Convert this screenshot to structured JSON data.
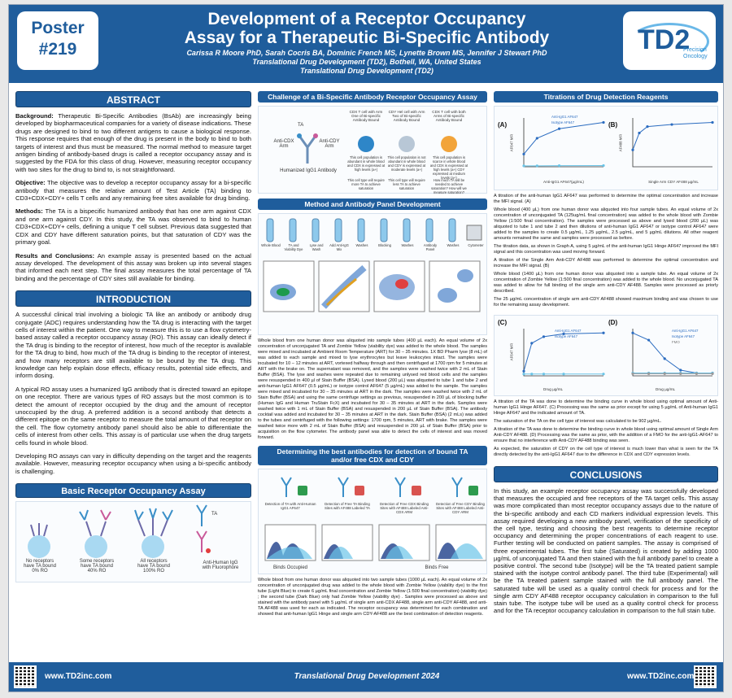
{
  "header": {
    "poster_label": "Poster",
    "poster_number": "#219",
    "title_line1": "Development of a Receptor Occupancy",
    "title_line2": "Assay for a Therapeutic Bi-Specific Antibody",
    "authors": "Carissa R Moore PhD, Sarah Cocris BA, Dominic French MS, Lynette Brown MS, Jennifer J Stewart PhD",
    "affiliation1": "Translational Drug Development (TD2), Bothell, WA, United States",
    "affiliation2": "Translational Drug Development (TD2)",
    "logo_text": "TD2",
    "logo_sub1": "Precision",
    "logo_sub2": "Oncology"
  },
  "abstract": {
    "heading": "ABSTRACT",
    "background_label": "Background:",
    "background": "Therapeutic Bi-Specific Antibodies (BsAb) are increasingly being developed by biopharmaceutical companies for a variety of disease indications. These drugs are designed to bind to two different antigens to cause a biological response. This response requires that enough of the drug is present in the body to bind to both targets of interest and thus must be measured. The normal method to measure target antigen binding of antibody-based drugs is called a receptor occupancy assay and is suggested by the FDA for this class of drug. However, measuring receptor occupancy with two sites for the drug to bind to, is not straightforward.",
    "objective_label": "Objective:",
    "objective": "The objective was to develop a receptor occupancy assay for a bi-specific antibody that measures the relative amount of Test Article (TA) binding to CD3+CDX+CDY+ cells T cells and any remaining free sites available for drug binding.",
    "methods_label": "Methods:",
    "methods": "The TA is a bispecific humanized antibody that has one arm against CDX and one arm against CDY. In this study, the TA was observed to bind to human CD3+CDX+CDY+ cells, defining a unique T cell subset. Previous data suggested that CDX and CDY have different saturation points, but that saturation of CDY was the primary goal.",
    "results_label": "Results and Conclusions:",
    "results": "An example assay is presented based on the actual assay developed. The development of this assay was broken up into several stages that informed each next step. The final assay measures the total percentage of TA binding and the percentage of CDY sites still available for binding."
  },
  "introduction": {
    "heading": "INTRODUCTION",
    "p1": "A successful clinical trial involving a biologic TA like an antibody or antibody drug conjugate (ADC) requires understanding how the TA drug is interacting with the target cells of interest within the patient. One way to measure this is to use a flow cytometry-based assay called a receptor occupancy assay (RO). This assay can ideally detect if the TA drug is binding to the receptor of interest, how much of the receptor is available for the TA drug to bind, how much of the TA drug is binding to the receptor of interest, and how many receptors are still available to be bound by the TA drug. This knowledge can help explain dose effects, efficacy results, potential side effects, and inform dosing.",
    "p2": "A typical RO assay uses a humanized IgG antibody that is directed toward an epitope on one receptor. There are various types of RO assays but the most common is to detect the amount of receptor occupied by the drug and the amount of receptor unoccupied by the drug. A preferred addition is a second antibody that detects a different epitope on the same receptor to measure the total amount of that receptor on the cell. The flow cytometry antibody panel should also be able to differentiate the cells of interest from other cells. This assay is of particular use when the drug targets cells found in whole blood.",
    "p3": "Developing RO assays can vary in difficulty depending on the target and the reagents available. However, measuring receptor occupancy when using a bi-specific antibody is challenging."
  },
  "basic_ro": {
    "heading": "Basic Receptor Occupancy Assay",
    "label1a": "No receptors",
    "label1b": "have TA bound",
    "label1c": "0% RO",
    "label2a": "Some receptors",
    "label2b": "have TA bound",
    "label2c": "40% RO",
    "label3a": "All receptors",
    "label3b": "have TA bound",
    "label3c": "100% RO",
    "ta_label": "TA",
    "anti_label1": "Anti-Human IgG",
    "anti_label2": "with Fluorophore"
  },
  "challenge": {
    "heading": "Challenge of a Bi-Specific Antibody Receptor Occupancy Assay",
    "ta_label": "TA",
    "arm_x": "Anti-CDX Arm",
    "arm_y": "Anti-CDY Arm",
    "humanized": "Humanized IgG1 Antibody",
    "col1_title": "CDX T cell with Arm One of Bi-specific Antibody Bound",
    "col2_title": "CDY Hel cell with Arm Two of Bi-specific Antibody Bound",
    "col3_title": "CDX T cell with both Arms of Bi-specific Antibody Bound",
    "col1_note": "This cell population is abundant in whole blood and CDX is expressed at high levels (a+)",
    "col2_note": "This cell population is not abundant in whole blood and CDY is expressed at moderate levels (a+)",
    "col3_note": "This cell population is scarce in whole blood and CDX is expressed at high levels (a+) CDY expressed at medium levels (a+)",
    "col1_note2": "This cell type will require more TA to achieve saturation",
    "col2_note2": "This cell type will require less TA to achieve saturation",
    "col3_note2": "How much TA will be needed to achieve saturation? How will we measure saturation?"
  },
  "method": {
    "heading": "Method and Antibody Panel Development",
    "steps": [
      "Whole Blood",
      "TA and Viability Dye",
      "Lyse and Wash",
      "Add Anti-IgG Mix",
      "Washes",
      "Blocking",
      "Washes",
      "Antibody Panel",
      "Washes",
      "Cytometer"
    ],
    "text": "Whole blood from one human donor was aliquoted into sample tubes (400 µL each). An equal volume of 2x concentration of unconjugated TA and Zombie Yellow (viability dye) was added to the whole blood. The samples were mixed and incubated at Ambient Room Temperature (ART) for 30 – 35 minutes. 1X BD Pharm lyse (8 mL) of was added to each sample and mixed to lyse erythrocytes but leave leukocytes intact. The samples were incubated for 10 – 12 minutes at ART, vortexed halfway through and then centrifuged at 1700 rpm for 5 minutes at ART with the brake on. The supernatant was removed, and the samples were washed twice with 2 mL of Stain Buffer (BSA). The lyse and washes were repeated due to remaining unlysed red blood cells and the samples were resuspended in 400 µl of Stain Buffer (BSA). Lysed blood (200 µL) was aliquoted to tube 1 and tube 2 and anti-human IgG1 AF647 (0.5 µg/mL) or isotype control AF647 (5 µg/mL) was added to the sample. The samples were mixed and incubated for 30 – 35 minutes at ART in the dark. The samples were washed twice with 2 mL of Stain Buffer (BSA) and using the same centrifuge settings as previous, resuspended in 200 µL of blocking buffer (Human IgG and Human TruStain FcX) and incubated for 30 – 35 minutes at ART in the dark. Samples were washed twice with 1 mL of Stain Buffer (BSA) and resuspended in 200 µL of Stain Buffer (BSA). The antibody cocktail was added and incubated for 30 – 35 minutes at ART in the dark. Stain Buffer (BSA) (2 mLs) was added to the tubes and centrifuged with the following settings: 1700 rpm, 5 minutes, ART with brake. The samples were washed twice more with 2 mL of Stain Buffer (BSA) and resuspended in 200 µL of Stain Buffer (BSA) prior to acquisition on the flow cytometer. The antibody panel was able to detect the cells of interest and was moved forward."
  },
  "best_ab": {
    "heading_line1": "Determining the best antibodies for detection of bound TA",
    "heading_line2": "and/or free CDX and CDY",
    "lab1": "Detection of TA with Anti-Human IgG1 AF647",
    "lab2": "Detection of Free TA Binding Sites with AF488 Labeled TA",
    "lab3": "Detection of Free CDX Binding Sites with AF488 Labeled Anti-CDX ARM",
    "lab4": "Detection of Free CDY Binding Sites with AF488 Labeled Anti-CDY ARM",
    "occupied": "Binds Occupied",
    "free": "Binds Free",
    "text": "Whole blood from one human donor was aliquoted into two sample tubes (1000 µL each). An equal volume of 2x concentration of unconjugated drug was added to the whole blood with Zombie Yellow (viability dye) to the first tube (Light Blue) to create 6 µg/mL final concentration and Zombie Yellow (1:500 final concentration) (viability dye) ; the second tube (Dark Blue) only had Zombie Yellow (viability dye) . Samples were processed as above and stained with the antibody panel with 5 µg/mL of single arm anti-CDX AF488, single arm anti-CDY AF488, and anti-TA AF488 was used for each as indicated. The receptor occupancy was determined for each combination and showed that anti-human IgG1 Hinge and single arm CDY-AF488 are the best combination of detection reagents."
  },
  "titrations": {
    "heading": "Titrations of Drug Detection Reagents",
    "panel_a": "(A)",
    "panel_b": "(B)",
    "panel_c": "(C)",
    "panel_d": "(D)",
    "a_legend1": "Anti-IgG1 AF647",
    "a_legend2": "Isotype AF647",
    "a_ylabel": "AF647 MFI",
    "a_xlabel": "Anti-IgG1 AF647(µg/mL)",
    "b_ylabel": "AF488 MFI",
    "b_xlabel": "Single Arm CDY AF488 µg/mL",
    "c_legend1": "Anti-IgG1 AF647",
    "c_legend2": "Isotype AF647",
    "c_ylabel": "AF647 MFI",
    "c_xlabel": "Drug µg/mL",
    "d_legend1": "Anti-IgG1 AF647",
    "d_legend2": "Isotype AF647",
    "d_legend3": "FMO",
    "d_xlabel": "Drug µg/mL",
    "t1": "A titration of the anti-human IgG1 AF647 was performed to determine the optimal concentration and increase the MFI signal. (A)",
    "t2": "Whole blood (400 µL) from one human donor was aliquoted into four sample tubes. An equal volume of 2x concentration of unconjugated TA (125ug/mL final concentration) was added to the whole blood with Zombie Yellow (1:500 final concentration). The samples were processed as above and lysed blood (200 µL) was aliquoted to tube 1 and tube 2 and then dilutions of anti-human IgG1 AF647 or isotype control AF647 were added to the samples to create 0.5 µg/mL, 1.25 µg/mL, 2.5 µg/mL, and 5 µg/mL dilutions. All other reagent amounts remained the same and samples were processed as before.",
    "t3": "The titration data, as shown in Graph A, using 5 µg/mL of the anti-human IgG1 Hinge AF647 improved the MFI signal and this concentration was used moving forward.",
    "t4": "A titration of the Single Arm Anti-CDY AF488 was performed to determine the optimal concentration and increase the MFI signal. (B)",
    "t5": "Whole blood (1400 µL) from one human donor was aliquoted into a sample tube. An equal volume of 2x concentration of Zombie Yellow (1:500 final concentration) was added to the whole blood. No unconjugated TA was added to allow for full binding of the single arm anti-CDY AF488. Samples were processed as priorly described.",
    "t6": "The 25 µg/mL concentration of single arm anti-CDY AF488 showed maximum binding and was chosen to use for the remaining assay development.",
    "t7": "A titration of the TA was done to determine the binding curve in whole blood using optimal amount of Anti-human IgG1 Hinge AF647. (C) Processing was the same as prior except for using 5 µg/mL of Anti-human IgG1 Hinge AF647 and the indicated amount of TA.",
    "t8": "The saturation of the TA on the cell type of interest was calculated to be 902 µg/mL.",
    "t9": "A titration of the TA was done to determine the binding curve in whole blood using optimal amount of Single Arm Anti-CDY AF488. (D) Processing was the same as prior, with the addition of a FMO for the anti-IgG1-AF647 to ensure that no interference with Anti-CDY AF488 binding was seen.",
    "t10": "As expected, the saturation of CDY on the cell type of interest is much lower than what is seen for the TA directly detected by the anti-IgG1 AF647 due to the difference in CDX and CDY expression levels."
  },
  "conclusions": {
    "heading": "CONCLUSIONS",
    "text": "In this study, an example receptor occupancy assay was successfully developed that measures the occupied and free receptors of the TA target cells. This assay was more complicated than most receptor occupancy assays due to the nature of the bi-specific antibody and each CD markers individual expression levels. This assay required developing a new antibody panel, verification of the specificity of the cell type, testing and choosing the best reagents to determine receptor occupancy and determining the proper concentrations of each reagent to use. Further testing will be conducted on patient samples. The assay is comprised of three experimental tubes. The first tube (Saturated) is created by adding 1000 µg/mL of unconjugated TA and then stained with the full antibody panel to create a positive control. The second tube (Isotype) will be the TA treated patient sample stained with the isotype control antibody panel. The third tube (Experimental) will be the TA treated patient sample stained with the full antibody panel. The saturated tube will be used as a quality control check for process and for the single arm CDY AF488 receptor occupancy calculation in comparison to the full stain tube. The isotype tube will be used as a quality control check for process and for the TA receptor occupancy calculation in comparison to the full stain tube."
  },
  "footer": {
    "url_left": "www.TD2inc.com",
    "center": "Translational Drug Development 2024",
    "url_right": "www.TD2inc.com"
  },
  "chart_data": [
    {
      "type": "line",
      "title": "",
      "xlabel": "Anti-IgG1 AF647(µg/mL)",
      "ylabel": "AF647 MFI",
      "series": [
        {
          "name": "Anti-IgG1 AF647",
          "x": [
            0.5,
            1.25,
            2.5,
            5
          ],
          "values": [
            2000,
            4500,
            6000,
            7000
          ]
        },
        {
          "name": "Isotype AF647",
          "x": [
            0.5,
            1.25,
            2.5,
            5
          ],
          "values": [
            150,
            150,
            180,
            200
          ]
        }
      ]
    },
    {
      "type": "line",
      "title": "",
      "xlabel": "Single Arm CDY AF488 µg/mL",
      "ylabel": "AF488 MFI",
      "series": [
        {
          "name": "",
          "x": [
            1,
            5,
            10,
            25,
            50
          ],
          "values": [
            400,
            800,
            950,
            1000,
            1050
          ]
        }
      ]
    },
    {
      "type": "line",
      "title": "",
      "xlabel": "Drug µg/mL",
      "ylabel": "AF647 MFI",
      "series": [
        {
          "name": "Anti-IgG1 AF647",
          "x": [
            0,
            100,
            250,
            500,
            1000
          ],
          "values": [
            500,
            3500,
            4200,
            4500,
            4600
          ]
        },
        {
          "name": "Isotype AF647",
          "x": [
            0,
            100,
            250,
            500,
            1000
          ],
          "values": [
            200,
            200,
            200,
            200,
            200
          ]
        }
      ]
    },
    {
      "type": "line",
      "title": "",
      "xlabel": "Drug µg/mL",
      "ylabel": "",
      "series": [
        {
          "name": "Anti-IgG1 AF647",
          "x": [
            0.01,
            0.1,
            1,
            10,
            100,
            1000
          ],
          "values": [
            3000,
            2500,
            1200,
            400,
            200,
            200
          ]
        },
        {
          "name": "Isotype AF647",
          "x": [
            0.01,
            0.1,
            1,
            10,
            100,
            1000
          ],
          "values": [
            200,
            200,
            200,
            200,
            200,
            200
          ]
        },
        {
          "name": "FMO",
          "x": [
            0.01,
            0.1,
            1,
            10,
            100,
            1000
          ],
          "values": [
            150,
            150,
            150,
            150,
            150,
            150
          ]
        }
      ]
    }
  ],
  "colors": {
    "brand": "#1f5d9c",
    "accent": "#2a8ed3"
  }
}
